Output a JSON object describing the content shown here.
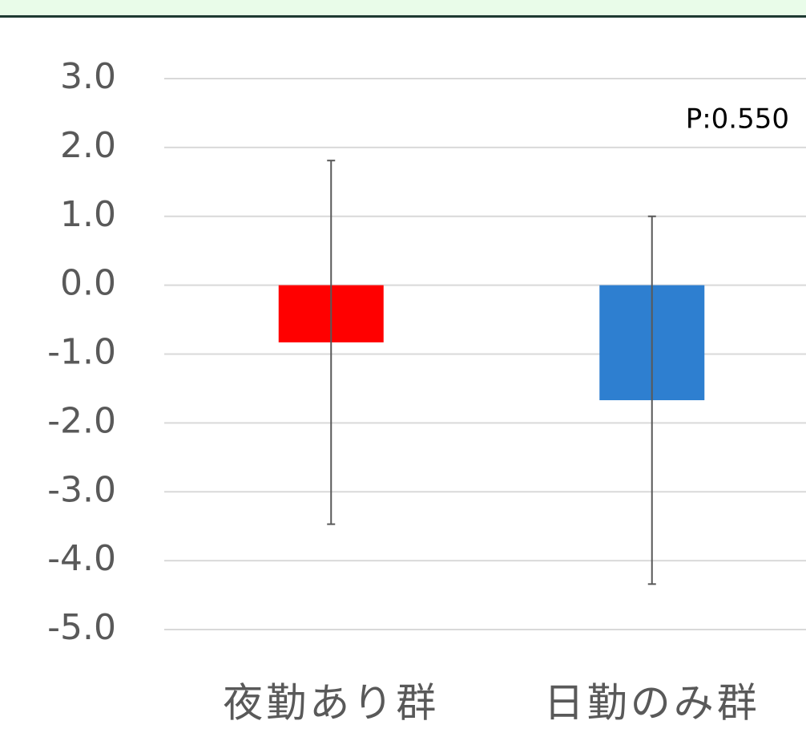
{
  "chart_data": {
    "type": "bar",
    "categories": [
      "夜勤あり群",
      "日勤のみ群"
    ],
    "values": [
      -0.83,
      -1.67
    ],
    "errors": [
      2.64,
      2.67
    ],
    "colors": [
      "#ff0000",
      "#2e7fd0"
    ],
    "error_color": "#595959",
    "annotation": "P:0.550",
    "ylim": [
      -5,
      3
    ],
    "yticks": [
      {
        "value": 3,
        "label": "3.0"
      },
      {
        "value": 2,
        "label": "2.0"
      },
      {
        "value": 1,
        "label": "1.0"
      },
      {
        "value": 0,
        "label": "0.0"
      },
      {
        "value": -1,
        "label": "-1.0"
      },
      {
        "value": -2,
        "label": "-2.0"
      },
      {
        "value": -3,
        "label": "-3.0"
      },
      {
        "value": -4,
        "label": "-4.0"
      },
      {
        "value": -5,
        "label": "-5.0"
      }
    ],
    "grid": true
  }
}
